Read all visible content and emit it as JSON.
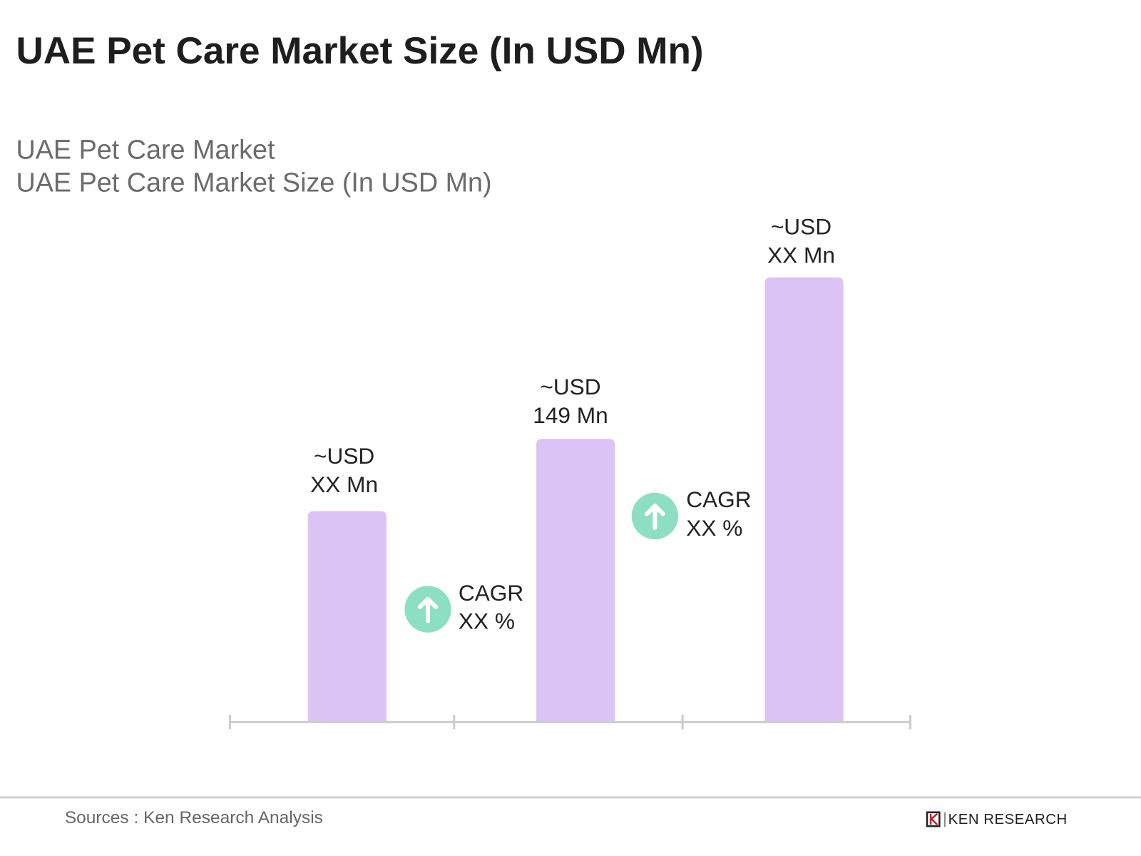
{
  "title": "UAE Pet Care Market Size (In USD Mn)",
  "subtitle1": "UAE Pet Care Market",
  "subtitle2": "UAE Pet Care Market Size (In USD Mn)",
  "colors": {
    "bar": "#dcc3f5",
    "cagr_circle": "#8ddfc4",
    "axis": "#cccccc"
  },
  "chart_data": {
    "type": "bar",
    "categories": [
      "",
      "",
      ""
    ],
    "values": [
      111,
      149,
      234
    ],
    "data_labels": [
      {
        "line1": "~USD",
        "line2": "XX Mn"
      },
      {
        "line1": "~USD",
        "line2": "149 Mn"
      },
      {
        "line1": "~USD",
        "line2": "XX Mn"
      }
    ],
    "annotations": [
      {
        "icon": "arrow-up-icon",
        "line1": "CAGR",
        "line2": "XX %"
      },
      {
        "icon": "arrow-up-icon",
        "line1": "CAGR",
        "line2": "XX %"
      }
    ],
    "xlabel": "",
    "ylabel": "",
    "grid": false,
    "legend": "none"
  },
  "footer": {
    "source": "Sources : Ken Research Analysis",
    "logo": "KEN RESEARCH"
  }
}
